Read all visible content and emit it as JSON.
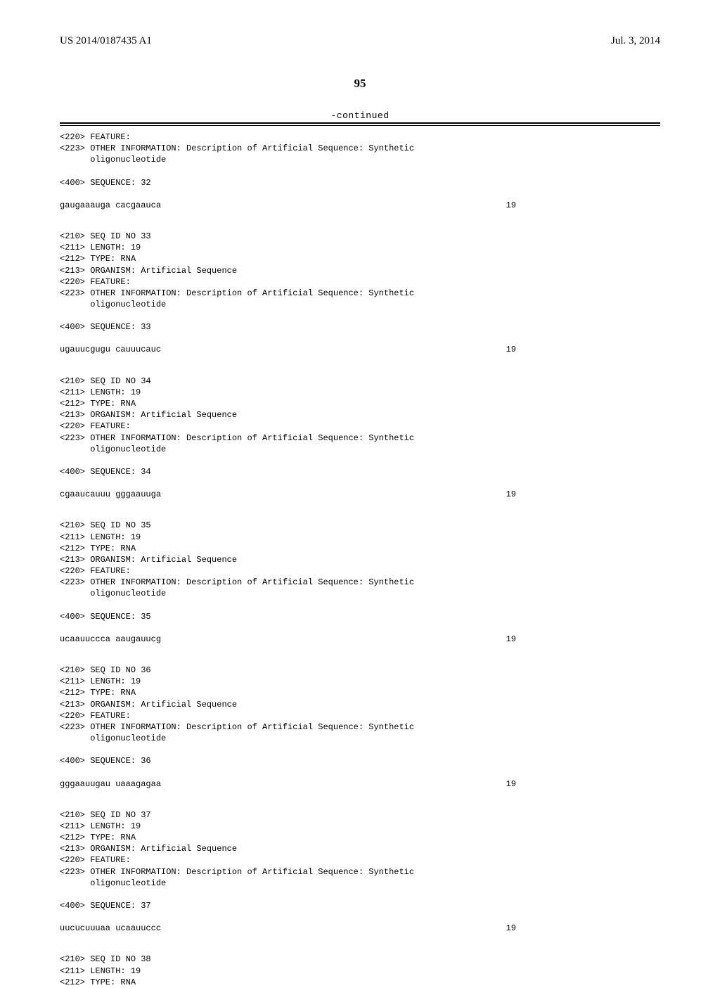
{
  "header": {
    "publication_number": "US 2014/0187435 A1",
    "publication_date": "Jul. 3, 2014"
  },
  "page_number": "95",
  "continued_label": "-continued",
  "entries": [
    {
      "prefix_lines": [
        "<220> FEATURE:",
        "<223> OTHER INFORMATION: Description of Artificial Sequence: Synthetic",
        "      oligonucleotide"
      ],
      "sequence_label": "<400> SEQUENCE: 32",
      "sequence": "gaugaaauga cacgaauca",
      "length": "19"
    },
    {
      "prefix_lines": [
        "<210> SEQ ID NO 33",
        "<211> LENGTH: 19",
        "<212> TYPE: RNA",
        "<213> ORGANISM: Artificial Sequence",
        "<220> FEATURE:",
        "<223> OTHER INFORMATION: Description of Artificial Sequence: Synthetic",
        "      oligonucleotide"
      ],
      "sequence_label": "<400> SEQUENCE: 33",
      "sequence": "ugauucgugu cauuucauc",
      "length": "19"
    },
    {
      "prefix_lines": [
        "<210> SEQ ID NO 34",
        "<211> LENGTH: 19",
        "<212> TYPE: RNA",
        "<213> ORGANISM: Artificial Sequence",
        "<220> FEATURE:",
        "<223> OTHER INFORMATION: Description of Artificial Sequence: Synthetic",
        "      oligonucleotide"
      ],
      "sequence_label": "<400> SEQUENCE: 34",
      "sequence": "cgaaucauuu gggaauuga",
      "length": "19"
    },
    {
      "prefix_lines": [
        "<210> SEQ ID NO 35",
        "<211> LENGTH: 19",
        "<212> TYPE: RNA",
        "<213> ORGANISM: Artificial Sequence",
        "<220> FEATURE:",
        "<223> OTHER INFORMATION: Description of Artificial Sequence: Synthetic",
        "      oligonucleotide"
      ],
      "sequence_label": "<400> SEQUENCE: 35",
      "sequence": "ucaauuccca aaugauucg",
      "length": "19"
    },
    {
      "prefix_lines": [
        "<210> SEQ ID NO 36",
        "<211> LENGTH: 19",
        "<212> TYPE: RNA",
        "<213> ORGANISM: Artificial Sequence",
        "<220> FEATURE:",
        "<223> OTHER INFORMATION: Description of Artificial Sequence: Synthetic",
        "      oligonucleotide"
      ],
      "sequence_label": "<400> SEQUENCE: 36",
      "sequence": "gggaauugau uaaagagaa",
      "length": "19"
    },
    {
      "prefix_lines": [
        "<210> SEQ ID NO 37",
        "<211> LENGTH: 19",
        "<212> TYPE: RNA",
        "<213> ORGANISM: Artificial Sequence",
        "<220> FEATURE:",
        "<223> OTHER INFORMATION: Description of Artificial Sequence: Synthetic",
        "      oligonucleotide"
      ],
      "sequence_label": "<400> SEQUENCE: 37",
      "sequence": "uucucuuuaa ucaauuccc",
      "length": "19"
    },
    {
      "prefix_lines": [
        "<210> SEQ ID NO 38",
        "<211> LENGTH: 19",
        "<212> TYPE: RNA"
      ],
      "sequence_label": "",
      "sequence": "",
      "length": ""
    }
  ]
}
